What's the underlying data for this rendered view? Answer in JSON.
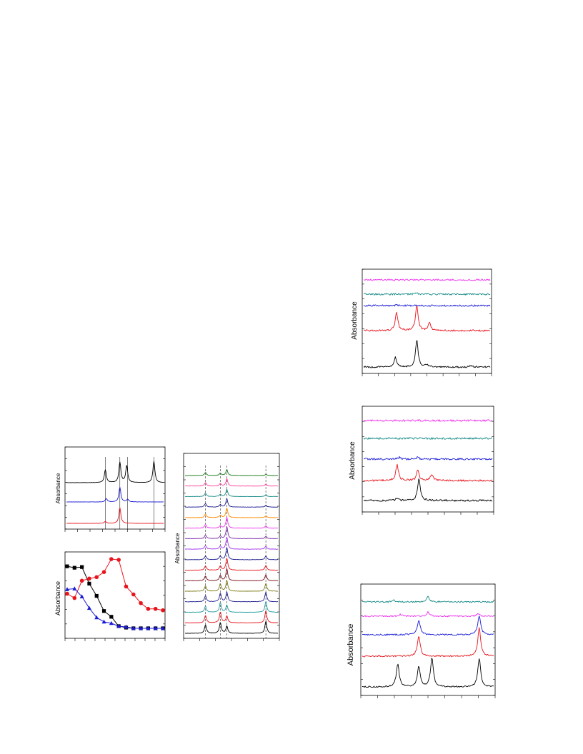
{
  "colors": {
    "black": "#000000",
    "red": "#e8141c",
    "blue": "#1b1bd6",
    "teal": "#138a85",
    "magenta": "#ee33ee",
    "green": "#1a7a1a",
    "pink": "#ff3e9a",
    "orange": "#ff8c00",
    "purple": "#7a2aa8",
    "violet": "#a033ee",
    "navy": "#1e1e90",
    "maroon": "#7a0f1a",
    "olive": "#7a7a14",
    "cyan": "#1e9aa0"
  },
  "chart_data": [
    {
      "id": "panel-top-left",
      "type": "line",
      "ylabel": "Absorbance",
      "xlabel": "",
      "title": "",
      "series": [
        {
          "color": "red",
          "peaks": [
            [
              0.4,
              0.1
            ],
            [
              0.55,
              0.85
            ]
          ]
        },
        {
          "color": "blue",
          "peaks": [
            [
              0.41,
              0.2
            ],
            [
              0.55,
              0.85
            ],
            [
              0.63,
              0.15
            ]
          ]
        },
        {
          "color": "black",
          "peaks": [
            [
              0.4,
              0.6
            ],
            [
              0.55,
              0.95
            ],
            [
              0.62,
              0.8
            ],
            [
              0.9,
              1.0
            ]
          ]
        }
      ],
      "guides_x": [
        0.4,
        0.55,
        0.63,
        0.9
      ]
    },
    {
      "id": "panel-bottom-left",
      "type": "line",
      "ylabel": "Absorbance",
      "xlabel": "",
      "title": "",
      "markers": true,
      "series": [
        {
          "color": "black",
          "marker": "square",
          "values": [
            0.88,
            0.86,
            0.87,
            0.64,
            0.47,
            0.26,
            0.18,
            0.05,
            0.03,
            0.02,
            0.02,
            0.02,
            0.02,
            0.02
          ]
        },
        {
          "color": "red",
          "marker": "circle",
          "values": [
            0.5,
            0.44,
            0.68,
            0.71,
            0.73,
            0.8,
            0.98,
            0.97,
            0.6,
            0.49,
            0.37,
            0.29,
            0.29,
            0.27
          ]
        },
        {
          "color": "blue",
          "marker": "triangle",
          "values": [
            0.56,
            0.57,
            0.46,
            0.3,
            0.17,
            0.11,
            0.09,
            0.05,
            0.04,
            0.02,
            0.02,
            0.02,
            0.02,
            0.02
          ]
        }
      ]
    },
    {
      "id": "panel-middle-stack",
      "type": "line",
      "ylabel": "Absorbance",
      "xlabel": "",
      "title": "",
      "series": [
        {
          "color": "black",
          "peaks": [
            [
              0.22,
              0.7
            ],
            [
              0.38,
              0.9
            ],
            [
              0.45,
              0.6
            ],
            [
              0.87,
              1.0
            ]
          ]
        },
        {
          "color": "red",
          "peaks": [
            [
              0.22,
              0.6
            ],
            [
              0.38,
              0.9
            ],
            [
              0.45,
              0.55
            ],
            [
              0.87,
              1.0
            ]
          ]
        },
        {
          "color": "cyan",
          "peaks": [
            [
              0.22,
              0.5
            ],
            [
              0.38,
              0.8
            ],
            [
              0.45,
              0.6
            ],
            [
              0.87,
              0.9
            ]
          ]
        },
        {
          "color": "navy",
          "peaks": [
            [
              0.22,
              0.5
            ],
            [
              0.38,
              0.7
            ],
            [
              0.45,
              0.8
            ],
            [
              0.87,
              0.8
            ]
          ]
        },
        {
          "color": "olive",
          "peaks": [
            [
              0.22,
              0.45
            ],
            [
              0.38,
              0.6
            ],
            [
              0.45,
              0.9
            ],
            [
              0.87,
              0.65
            ]
          ]
        },
        {
          "color": "maroon",
          "peaks": [
            [
              0.22,
              0.4
            ],
            [
              0.38,
              0.45
            ],
            [
              0.45,
              1.0
            ],
            [
              0.87,
              0.5
            ]
          ]
        },
        {
          "color": "red",
          "peaks": [
            [
              0.22,
              0.35
            ],
            [
              0.38,
              0.35
            ],
            [
              0.45,
              1.0
            ],
            [
              0.87,
              0.4
            ]
          ]
        },
        {
          "color": "navy",
          "peaks": [
            [
              0.22,
              0.3
            ],
            [
              0.38,
              0.3
            ],
            [
              0.45,
              1.0
            ],
            [
              0.87,
              0.3
            ]
          ]
        },
        {
          "color": "violet",
          "peaks": [
            [
              0.22,
              0.3
            ],
            [
              0.38,
              0.25
            ],
            [
              0.45,
              1.0
            ],
            [
              0.87,
              0.25
            ]
          ]
        },
        {
          "color": "purple",
          "peaks": [
            [
              0.22,
              0.3
            ],
            [
              0.38,
              0.2
            ],
            [
              0.45,
              1.0
            ],
            [
              0.87,
              0.2
            ]
          ]
        },
        {
          "color": "magenta",
          "peaks": [
            [
              0.22,
              0.3
            ],
            [
              0.38,
              0.2
            ],
            [
              0.45,
              0.9
            ],
            [
              0.87,
              0.2
            ]
          ]
        },
        {
          "color": "orange",
          "peaks": [
            [
              0.22,
              0.3
            ],
            [
              0.38,
              0.2
            ],
            [
              0.45,
              0.8
            ],
            [
              0.87,
              0.15
            ]
          ]
        },
        {
          "color": "navy",
          "peaks": [
            [
              0.22,
              0.3
            ],
            [
              0.38,
              0.2
            ],
            [
              0.45,
              0.7
            ],
            [
              0.87,
              0.15
            ]
          ]
        },
        {
          "color": "teal",
          "peaks": [
            [
              0.22,
              0.3
            ],
            [
              0.38,
              0.2
            ],
            [
              0.45,
              0.6
            ],
            [
              0.87,
              0.15
            ]
          ]
        },
        {
          "color": "pink",
          "peaks": [
            [
              0.22,
              0.3
            ],
            [
              0.38,
              0.2
            ],
            [
              0.45,
              0.6
            ],
            [
              0.87,
              0.15
            ]
          ]
        },
        {
          "color": "green",
          "peaks": [
            [
              0.22,
              0.25
            ],
            [
              0.38,
              0.2
            ],
            [
              0.45,
              0.5
            ],
            [
              0.87,
              0.1
            ]
          ]
        }
      ],
      "guides_x": [
        0.22,
        0.38,
        0.45,
        0.87
      ]
    },
    {
      "id": "panel-right-top",
      "type": "line",
      "ylabel": "Absorbance",
      "xlabel": "",
      "title": "",
      "series": [
        {
          "color": "black",
          "peaks": [
            [
              0.25,
              0.35
            ],
            [
              0.42,
              1.0
            ],
            [
              0.5,
              0.1
            ],
            [
              0.85,
              0.05
            ]
          ]
        },
        {
          "color": "red",
          "peaks": [
            [
              0.26,
              0.7
            ],
            [
              0.42,
              1.0
            ],
            [
              0.52,
              0.3
            ]
          ]
        },
        {
          "color": "blue",
          "peaks": [
            [
              0.26,
              0.1
            ],
            [
              0.42,
              0.15
            ]
          ]
        },
        {
          "color": "teal",
          "peaks": [
            [
              0.42,
              0.15
            ],
            [
              0.88,
              0.1
            ]
          ]
        },
        {
          "color": "magenta",
          "peaks": []
        }
      ]
    },
    {
      "id": "panel-right-middle",
      "type": "line",
      "ylabel": "Absorbance",
      "xlabel": "",
      "title": "",
      "series": [
        {
          "color": "black",
          "peaks": [
            [
              0.26,
              0.1
            ],
            [
              0.43,
              1.0
            ]
          ]
        },
        {
          "color": "red",
          "peaks": [
            [
              0.26,
              0.8
            ],
            [
              0.42,
              0.5
            ],
            [
              0.53,
              0.3
            ]
          ]
        },
        {
          "color": "blue",
          "peaks": [
            [
              0.28,
              0.25
            ],
            [
              0.42,
              0.25
            ]
          ]
        },
        {
          "color": "teal",
          "peaks": []
        },
        {
          "color": "magenta",
          "peaks": [
            [
              0.43,
              0.08
            ]
          ]
        }
      ]
    },
    {
      "id": "panel-right-bottom",
      "type": "line",
      "ylabel": "Absorbance",
      "xlabel": "",
      "title": "",
      "series": [
        {
          "color": "black",
          "peaks": [
            [
              0.27,
              0.8
            ],
            [
              0.43,
              0.7
            ],
            [
              0.53,
              1.0
            ],
            [
              0.89,
              1.0
            ]
          ]
        },
        {
          "color": "red",
          "peaks": [
            [
              0.43,
              0.7
            ],
            [
              0.89,
              1.0
            ]
          ]
        },
        {
          "color": "blue",
          "peaks": [
            [
              0.43,
              0.6
            ],
            [
              0.89,
              0.8
            ]
          ]
        },
        {
          "color": "magenta",
          "peaks": [
            [
              0.29,
              0.2
            ],
            [
              0.5,
              0.5
            ],
            [
              0.88,
              0.3
            ]
          ]
        },
        {
          "color": "teal",
          "peaks": [
            [
              0.24,
              0.2
            ],
            [
              0.5,
              0.5
            ]
          ]
        }
      ]
    }
  ]
}
